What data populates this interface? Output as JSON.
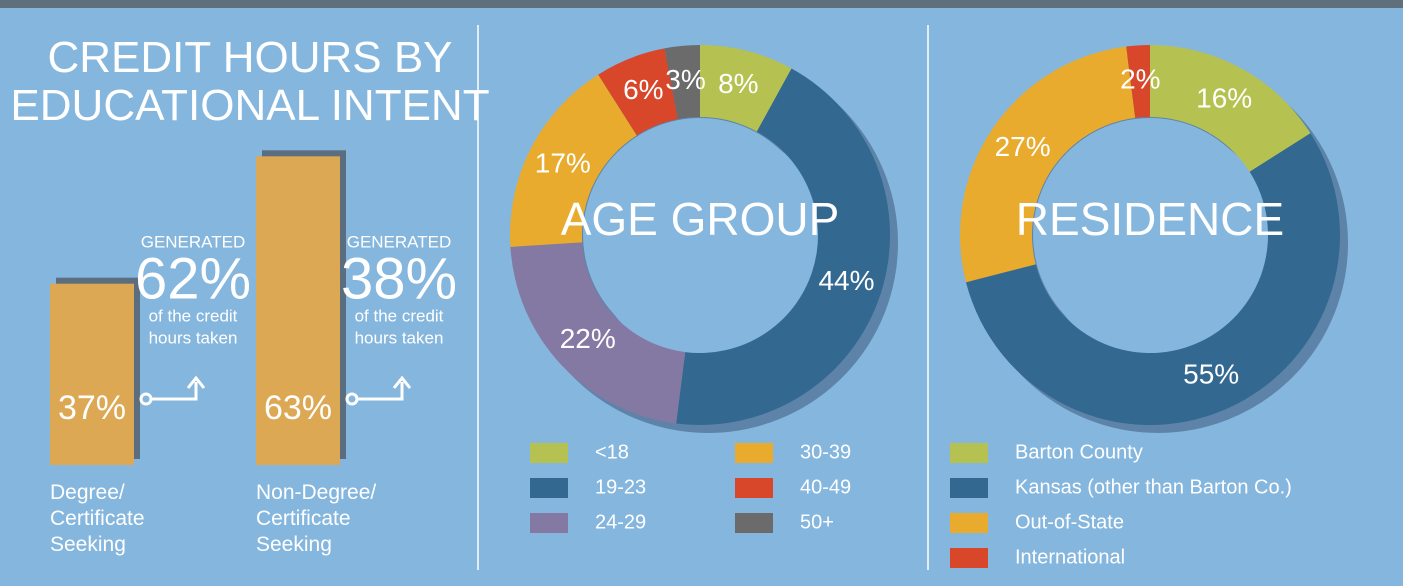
{
  "chart_data": [
    {
      "type": "bar",
      "title": "CREDIT HOURS BY EDUCATIONAL INTENT",
      "categories": [
        "Degree/ Certificate Seeking",
        "Non-Degree/ Certificate Seeking"
      ],
      "values": [
        37,
        63
      ],
      "value_labels": [
        "37%",
        "63%"
      ],
      "color": "#dca853",
      "annotations": [
        {
          "heading": "GENERATED",
          "value": "62%",
          "lines": [
            "of the credit",
            "hours taken"
          ]
        },
        {
          "heading": "GENERATED",
          "value": "38%",
          "lines": [
            "of the credit",
            "hours taken"
          ]
        }
      ]
    },
    {
      "type": "donut",
      "title": "AGE GROUP",
      "categories": [
        "<18",
        "19-23",
        "24-29",
        "30-39",
        "40-49",
        "50+"
      ],
      "values": [
        8,
        44,
        22,
        17,
        6,
        3
      ],
      "value_labels": [
        "8%",
        "44%",
        "22%",
        "17%",
        "6%",
        "3%"
      ],
      "colors": [
        "#b5c150",
        "#336891",
        "#8479a3",
        "#e8ab2d",
        "#d8472a",
        "#6b6b6b"
      ]
    },
    {
      "type": "donut",
      "title": "RESIDENCE",
      "categories": [
        "Barton County",
        "Kansas (other than Barton Co.)",
        "Out-of-State",
        "International"
      ],
      "values": [
        16,
        55,
        27,
        2
      ],
      "value_labels": [
        "16%",
        "55%",
        "27%",
        "2%"
      ],
      "colors": [
        "#b5c150",
        "#336891",
        "#e8ab2d",
        "#d8472a"
      ]
    }
  ]
}
